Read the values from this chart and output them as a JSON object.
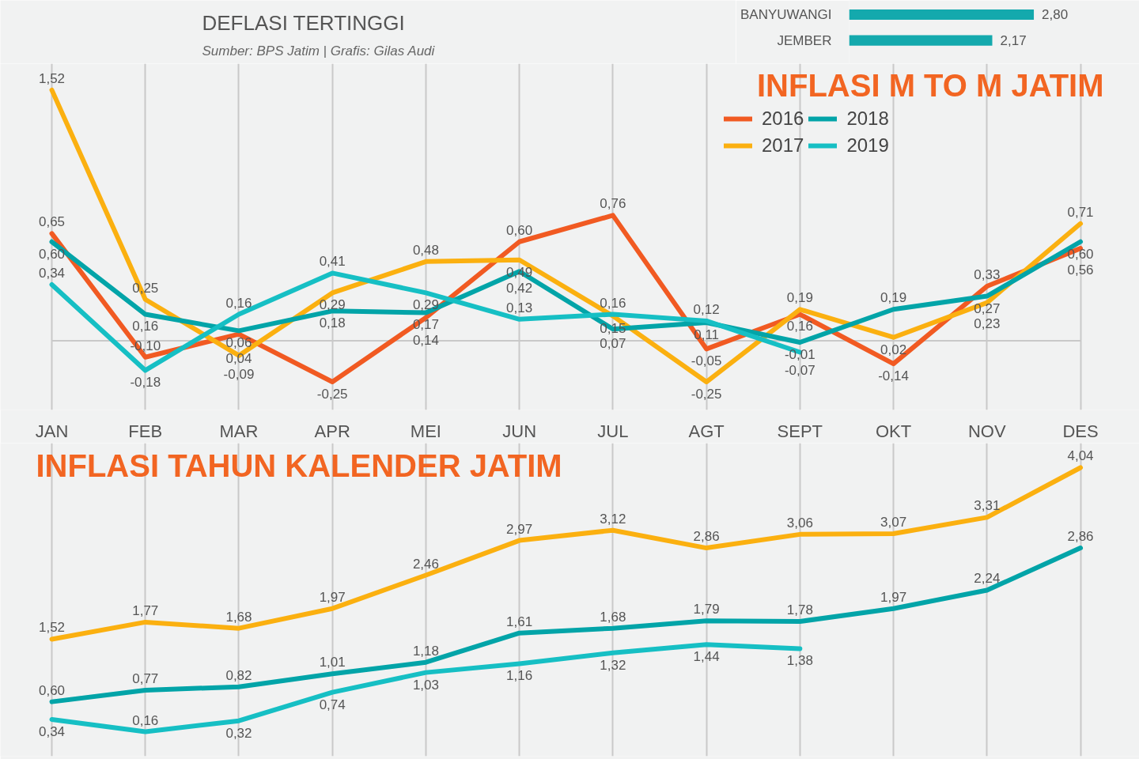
{
  "chart_data": [
    {
      "type": "bar",
      "orientation": "horizontal",
      "categories": [
        "BANYUWANGI",
        "JEMBER"
      ],
      "values": [
        2.8,
        2.17
      ],
      "color": "#14a9ad",
      "value_labels": [
        "2,80",
        "2,17"
      ],
      "xlim": [
        0,
        4.4
      ],
      "tick_labels": "y",
      "annotations": [
        "DEFLASI TERTINGGI",
        "Sumber: BPS Jatim | Grafis: Gilas Audi"
      ]
    },
    {
      "type": "line",
      "title": "INFLASI M TO M JATIM",
      "categories": [
        "JAN",
        "FEB",
        "MAR",
        "APR",
        "MEI",
        "JUN",
        "JUL",
        "AGT",
        "SEPT",
        "OKT",
        "NOV",
        "DES"
      ],
      "ylim": [
        -0.42,
        1.68
      ],
      "tick_labels": "x",
      "grid": "x",
      "legend": "top right",
      "ref_lines": [
        {
          "axis": "y",
          "value": 0,
          "color": "#c9c9c9"
        }
      ],
      "series": [
        {
          "name": "2016",
          "color": "#f15a22",
          "values": [
            0.65,
            -0.1,
            0.04,
            -0.25,
            0.14,
            0.6,
            0.76,
            -0.05,
            0.16,
            -0.14,
            0.33,
            0.56
          ],
          "value_labels": [
            "0,65",
            "-0,10",
            "0,04",
            "-0,25",
            "0,14",
            "0,60",
            "0,76",
            "-0,05",
            "0,16",
            "-0,14",
            "0,33",
            "0,56"
          ]
        },
        {
          "name": "2017",
          "color": "#fbb010",
          "values": [
            1.52,
            0.25,
            -0.09,
            0.29,
            0.48,
            0.49,
            0.15,
            -0.25,
            0.19,
            0.02,
            0.23,
            0.71
          ],
          "value_labels": [
            "1,52",
            "0,25",
            "-0,09",
            "0,29",
            "0,48",
            "0,49",
            "0,15",
            "-0,25",
            "0,19",
            "0,02",
            "0,23",
            "0,71"
          ]
        },
        {
          "name": "2018",
          "color": "#02a4a8",
          "values": [
            0.6,
            0.16,
            0.06,
            0.18,
            0.17,
            0.42,
            0.07,
            0.11,
            -0.01,
            0.19,
            0.27,
            0.6
          ],
          "value_labels": [
            "0,60",
            "0,16",
            "0,06",
            "0,18",
            "0,17",
            "0,42",
            "0,07",
            "0,11",
            "-0,01",
            "0,19",
            "0,27",
            "0,60"
          ]
        },
        {
          "name": "2019",
          "color": "#16bfc4",
          "values": [
            0.34,
            -0.18,
            0.16,
            0.41,
            0.29,
            0.13,
            0.16,
            0.12,
            -0.07,
            null,
            null,
            null
          ],
          "value_labels": [
            "0,34",
            "-0,18",
            "0,16",
            "0,41",
            "0,29",
            "0,13",
            "0,16",
            "0,12",
            "-0,07",
            null,
            null,
            null
          ]
        }
      ]
    },
    {
      "type": "line",
      "title": "INFLASI TAHUN KALENDER JATIM",
      "categories": [
        null,
        null,
        null,
        null,
        null,
        null,
        null,
        null,
        null,
        null,
        null,
        null
      ],
      "ylim": [
        -0.2,
        4.4
      ],
      "tick_labels": false,
      "grid": "x",
      "series": [
        {
          "color": "#fbb010",
          "values": [
            1.52,
            1.77,
            1.68,
            1.97,
            2.46,
            2.97,
            3.12,
            2.86,
            3.06,
            3.07,
            3.31,
            4.04
          ],
          "value_labels": [
            "1,52",
            "1,77",
            "1,68",
            "1,97",
            "2,46",
            "2,97",
            "3,12",
            "2,86",
            "3,06",
            "3,07",
            "3,31",
            "4,04"
          ]
        },
        {
          "color": "#02a4a8",
          "values": [
            0.6,
            0.77,
            0.82,
            1.01,
            1.18,
            1.61,
            1.68,
            1.79,
            1.78,
            1.97,
            2.24,
            2.86
          ],
          "value_labels": [
            "0,60",
            "0,77",
            "0,82",
            "1,01",
            "1,18",
            "1,61",
            "1,68",
            "1,79",
            "1,78",
            "1,97",
            "2,24",
            "2,86"
          ]
        },
        {
          "color": "#16bfc4",
          "values": [
            0.34,
            0.16,
            0.32,
            0.74,
            1.03,
            1.16,
            1.32,
            1.44,
            1.38,
            null,
            null,
            null
          ],
          "value_labels": [
            "0,34",
            "0,16",
            "0,32",
            "0,74",
            "1,03",
            "1,16",
            "1,32",
            "1,44",
            "1,38",
            null,
            null,
            null
          ]
        }
      ]
    }
  ]
}
